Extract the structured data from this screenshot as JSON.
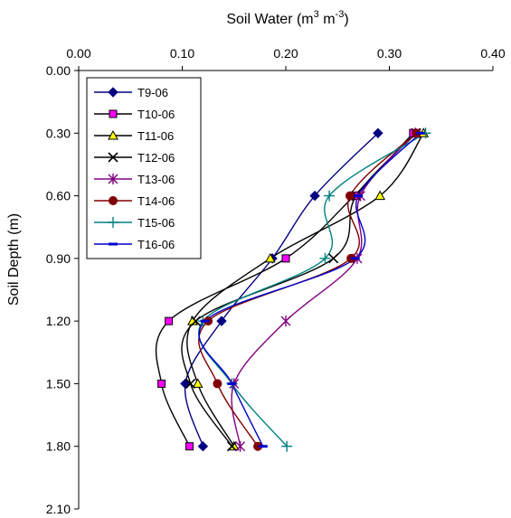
{
  "chart_data": {
    "type": "line",
    "title": "",
    "xlabel": "Soil Water (m³ m⁻³)",
    "xlabel_parts": {
      "base": "Soil Water (m",
      "exp1": "3",
      "mid": " m",
      "exp2": "-3",
      "end": ")"
    },
    "ylabel": "Soil Depth (m)",
    "x_axis_position": "top",
    "y_axis_inverted": true,
    "xlim": [
      0.0,
      0.4
    ],
    "ylim": [
      0.0,
      2.1
    ],
    "x_ticks": [
      "0.00",
      "0.10",
      "0.20",
      "0.30",
      "0.40"
    ],
    "y_ticks": [
      "0.00",
      "0.30",
      "0.60",
      "0.90",
      "1.20",
      "1.50",
      "1.80",
      "2.10"
    ],
    "grid": false,
    "legend_position": "top-left",
    "smooth": true,
    "depths": [
      0.3,
      0.6,
      0.9,
      1.2,
      1.5,
      1.8
    ],
    "series": [
      {
        "name": "T9-06",
        "color": "#000080",
        "marker": "diamond",
        "water": [
          0.289,
          0.228,
          0.187,
          0.138,
          0.103,
          0.12
        ]
      },
      {
        "name": "T10-06",
        "color": "#000000",
        "marker": "square",
        "markerFill": "#ff00ff",
        "water": [
          0.323,
          0.266,
          0.2,
          0.087,
          0.08,
          0.107
        ]
      },
      {
        "name": "T11-06",
        "color": "#000000",
        "marker": "triangle",
        "markerFill": "#ffff00",
        "water": [
          0.333,
          0.291,
          0.185,
          0.11,
          0.115,
          0.15
        ]
      },
      {
        "name": "T12-06",
        "color": "#000000",
        "marker": "x",
        "water": [
          0.326,
          0.268,
          0.246,
          0.113,
          0.108,
          0.148
        ]
      },
      {
        "name": "T13-06",
        "color": "#800080",
        "marker": "star",
        "water": [
          0.325,
          0.272,
          0.269,
          0.2,
          0.15,
          0.156
        ]
      },
      {
        "name": "T14-06",
        "color": "#800000",
        "marker": "circle",
        "water": [
          0.326,
          0.262,
          0.263,
          0.125,
          0.134,
          0.173
        ]
      },
      {
        "name": "T15-06",
        "color": "#008080",
        "marker": "plus",
        "water": [
          0.335,
          0.242,
          0.238,
          0.12,
          0.148,
          0.201
        ]
      },
      {
        "name": "T16-06",
        "color": "#0000cc",
        "marker": "dash",
        "water": [
          0.33,
          0.27,
          0.267,
          0.122,
          0.148,
          0.178
        ]
      }
    ]
  }
}
